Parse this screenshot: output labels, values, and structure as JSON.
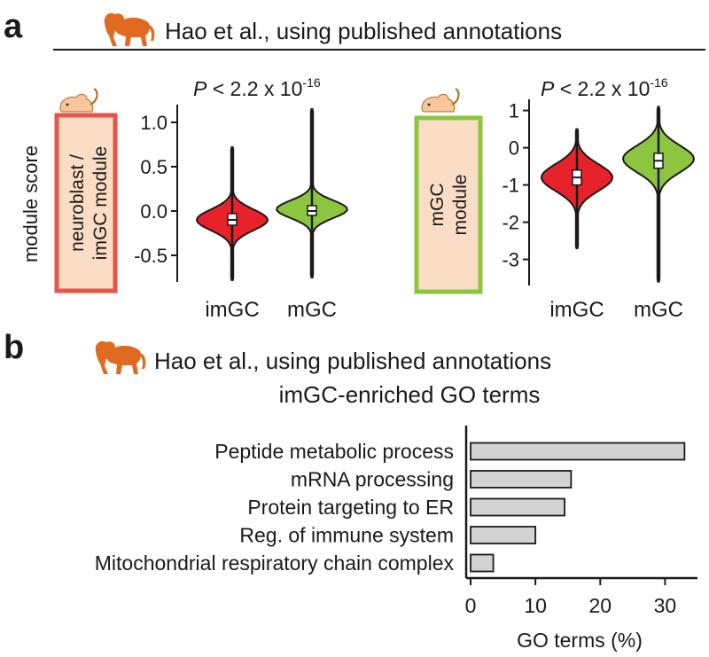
{
  "panel_a": {
    "letter": "a",
    "header": "Hao et al., using published annotations",
    "left_module_line1": "neuroblast /",
    "left_module_line2": "imGC module",
    "right_module_line1": "mGC",
    "right_module_line2": "module",
    "y_axis_label": "module score",
    "p_value_prefix": "P",
    "p_value_text": " < 2.2 x 10",
    "p_value_exp": "-16"
  },
  "panel_b": {
    "letter": "b",
    "header_line1": "Hao et al., using published annotations",
    "header_line2": "imGC-enriched GO terms"
  },
  "colors": {
    "imGC": "#e8222a",
    "mGC": "#8cc63e",
    "left_box_border": "#e8534a",
    "right_box_border": "#8cc63e",
    "box_fill": "#fbdcc4",
    "bar_fill": "#d3d3d3",
    "monkey": "#e06a1f",
    "mouse": "#f7c79c"
  },
  "chart_data": [
    {
      "type": "violin",
      "panel": "a-left",
      "categories": [
        "imGC",
        "mGC"
      ],
      "ylim": [
        -0.8,
        1.2
      ],
      "yticks": [
        "-0.5",
        "0.0",
        "0.5",
        "1.0"
      ],
      "ytick_values": [
        -0.5,
        0.0,
        0.5,
        1.0
      ],
      "series": [
        {
          "category": "imGC",
          "median": -0.1,
          "q1": -0.16,
          "q3": -0.03,
          "min": -0.78,
          "max": 0.72,
          "peak": -0.1
        },
        {
          "category": "mGC",
          "median": 0.0,
          "q1": -0.05,
          "q3": 0.06,
          "min": -0.75,
          "max": 1.15,
          "peak": 0.02
        }
      ]
    },
    {
      "type": "violin",
      "panel": "a-right",
      "categories": [
        "imGC",
        "mGC"
      ],
      "ylim": [
        -3.7,
        1.3
      ],
      "yticks": [
        "-3",
        "-2",
        "-1",
        "0",
        "1"
      ],
      "ytick_values": [
        -3,
        -2,
        -1,
        0,
        1
      ],
      "series": [
        {
          "category": "imGC",
          "median": -0.8,
          "q1": -1.0,
          "q3": -0.6,
          "min": -2.7,
          "max": 0.5,
          "peak": -0.8
        },
        {
          "category": "mGC",
          "median": -0.35,
          "q1": -0.55,
          "q3": -0.15,
          "min": -3.6,
          "max": 1.1,
          "peak": -0.3
        }
      ]
    },
    {
      "type": "bar",
      "orientation": "horizontal",
      "panel": "b",
      "categories": [
        "Peptide metabolic process",
        "mRNA processing",
        "Protein targeting to ER",
        "Reg. of immune system",
        "Mitochondrial respiratory chain complex"
      ],
      "values": [
        33,
        15.5,
        14.5,
        10,
        3.5
      ],
      "xlabel": "GO terms (%)",
      "xlim": [
        0,
        35
      ],
      "xticks": [
        "0",
        "10",
        "20",
        "30"
      ],
      "xtick_values": [
        0,
        10,
        20,
        30
      ]
    }
  ]
}
